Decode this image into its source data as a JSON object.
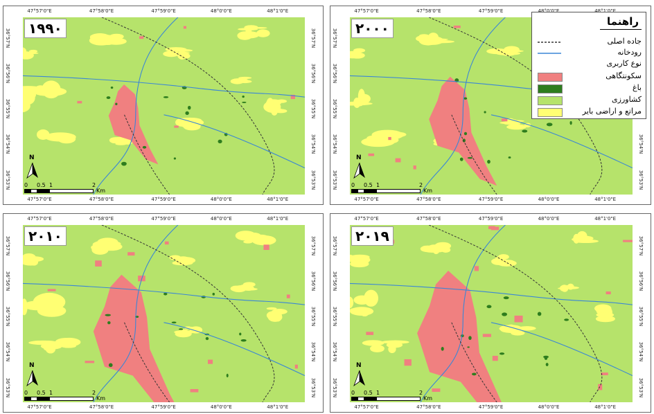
{
  "ticks": {
    "top": [
      "47°57'0\"E",
      "47°58'0\"E",
      "47°59'0\"E",
      "48°0'0\"E",
      "48°1'0\"E"
    ],
    "bottom": [
      "47°57'0\"E",
      "47°58'0\"E",
      "47°59'0\"E",
      "48°0'0\"E",
      "48°1'0\"E"
    ],
    "lat": [
      "36°57'N",
      "36°56'N",
      "36°55'N",
      "36°54'N",
      "36°53'N"
    ]
  },
  "panels": [
    {
      "year": "۱۹۹۰"
    },
    {
      "year": "۲۰۰۰"
    },
    {
      "year": "۲۰۱۰"
    },
    {
      "year": "۲۰۱۹"
    }
  ],
  "scale_bar": {
    "labels": [
      "0",
      "0.5",
      "1",
      "2"
    ],
    "unit": "Km"
  },
  "north_label": "N",
  "legend": {
    "title": "راهنما",
    "road_label": "جاده اصلی",
    "river_label": "رودخانه",
    "landuse_heading": "نوع کاربری",
    "classes": [
      {
        "label": "سکونتگاهی",
        "color": "#f08080"
      },
      {
        "label": "باغ",
        "color": "#2e7d1e"
      },
      {
        "label": "کشاورزی",
        "color": "#b6e36b"
      },
      {
        "label": "مراتع و اراضی بایر",
        "color": "#ffff73"
      }
    ],
    "road_color": "#333333",
    "river_color": "#3a86d6"
  }
}
